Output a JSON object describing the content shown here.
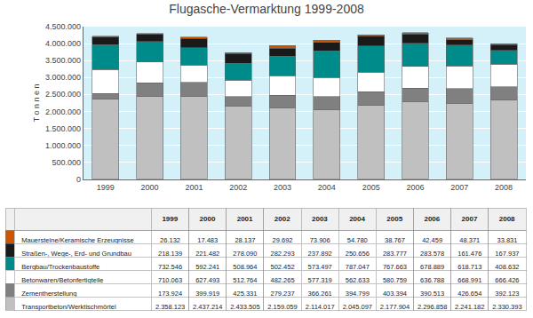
{
  "chart_data": {
    "type": "bar",
    "stacked": true,
    "grid": true,
    "title": "Flugasche-Vermarktung 1999-2008",
    "ylabel": "T o n n e n",
    "categories": [
      "1999",
      "2000",
      "2001",
      "2002",
      "2003",
      "2004",
      "2005",
      "2006",
      "2007",
      "2008"
    ],
    "series": [
      {
        "name": "Transportbeton/Werktischmörtel",
        "color": "#c0c0c0",
        "values": [
          2358123,
          2437214,
          2433505,
          2159059,
          2114017,
          2045097,
          2177904,
          2296858,
          2241182,
          2330393
        ],
        "value_labels": [
          "2.358.123",
          "2.437.214",
          "2.433.505",
          "2.159.059",
          "2.114.017",
          "2.045.097",
          "2.177.904",
          "2.296.858",
          "2.241.182",
          "2.330.393"
        ]
      },
      {
        "name": "Zementherstellung",
        "color": "#808080",
        "values": [
          173924,
          399919,
          425331,
          279237,
          366261,
          394799,
          403394,
          390513,
          426654,
          392123
        ],
        "value_labels": [
          "173.924",
          "399.919",
          "425.331",
          "279.237",
          "366.261",
          "394.799",
          "403.394",
          "390.513",
          "426.654",
          "392.123"
        ]
      },
      {
        "name": "Betonwaren/Betonfertigteile",
        "color": "#ffffff",
        "values": [
          710063,
          627493,
          512764,
          482265,
          577319,
          562633,
          580759,
          636788,
          668991,
          666426
        ],
        "value_labels": [
          "710.063",
          "627.493",
          "512.764",
          "482.265",
          "577.319",
          "562.633",
          "580.759",
          "636.788",
          "668.991",
          "666.426"
        ]
      },
      {
        "name": "Bergbau/Trockenbaustoffe",
        "color": "#008b8b",
        "values": [
          732546,
          592241,
          508964,
          502452,
          573497,
          787047,
          767663,
          678889,
          618713,
          408632
        ],
        "value_labels": [
          "732.546",
          "592.241",
          "508.964",
          "502.452",
          "573.497",
          "787.047",
          "767.663",
          "678.889",
          "618.713",
          "408.632"
        ]
      },
      {
        "name": "Straßen-, Wege-, Erd- und Grundbau",
        "color": "#1a1a1a",
        "values": [
          218139,
          221482,
          278090,
          282293,
          237892,
          250656,
          283777,
          283578,
          161476,
          167937
        ],
        "value_labels": [
          "218.139",
          "221.482",
          "278.090",
          "282.293",
          "237.892",
          "250.656",
          "283.777",
          "283.578",
          "161.476",
          "167.937"
        ]
      },
      {
        "name": "Mauersteine/Keramische Erzeugnisse",
        "color": "#cc5500",
        "values": [
          26132,
          17483,
          28137,
          29692,
          73906,
          54780,
          38767,
          42459,
          48371,
          33831
        ],
        "value_labels": [
          "26.132",
          "17.483",
          "28.137",
          "29.692",
          "73.906",
          "54.780",
          "38.767",
          "42.459",
          "48.371",
          "33.831"
        ]
      }
    ],
    "ylim": [
      0,
      4500000
    ],
    "yticks": [
      0,
      {
        "value": 500000,
        "label": "500.000"
      },
      {
        "value": 1000000,
        "label": "1.000.000"
      },
      {
        "value": 1500000,
        "label": "1.500.000"
      },
      {
        "value": 2000000,
        "label": "2.000.000"
      },
      {
        "value": 2500000,
        "label": "2.500.000"
      },
      {
        "value": 3000000,
        "label": "3.000.000"
      },
      {
        "value": 3500000,
        "label": "3.500.000"
      },
      {
        "value": 4000000,
        "label": "4.000.000"
      },
      {
        "value": 4500000,
        "label": "4.500.000"
      }
    ]
  }
}
